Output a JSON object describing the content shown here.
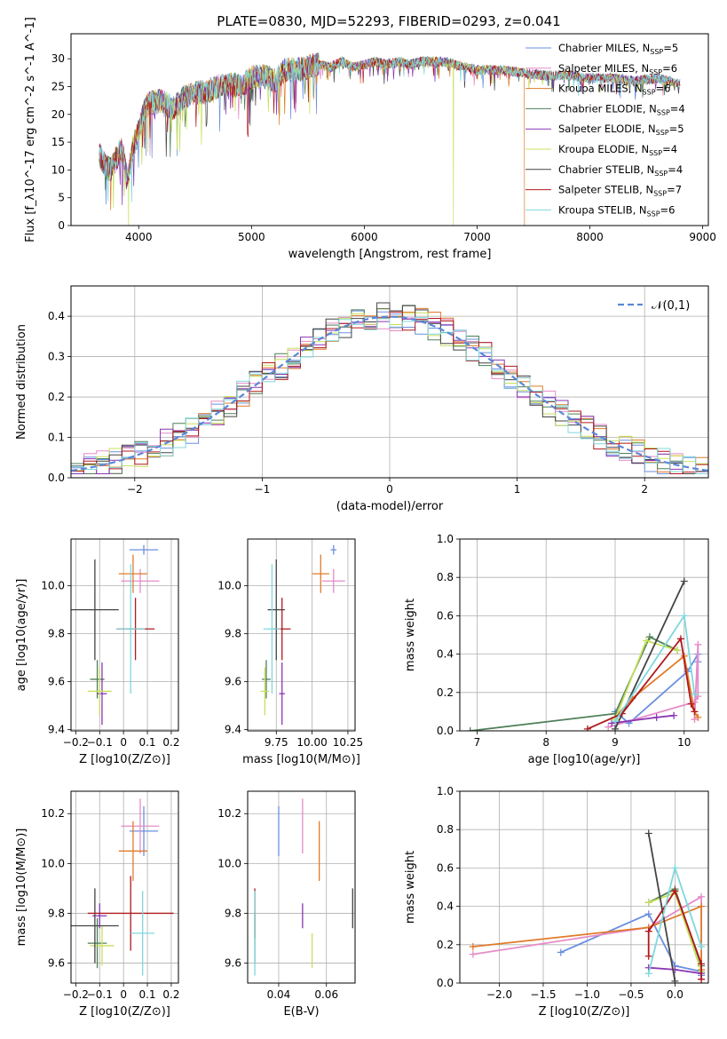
{
  "title": "PLATE=0830, MJD=52293, FIBERID=0293, z=0.041",
  "models": [
    {
      "name": "Chabrier MILES",
      "nssp": "5",
      "color": "#6a8fe0"
    },
    {
      "name": "Salpeter MILES",
      "nssp": "6",
      "color": "#e58bc8"
    },
    {
      "name": "Kroupa MILES",
      "nssp": "6",
      "color": "#e07b2a"
    },
    {
      "name": "Chabrier ELODIE",
      "nssp": "4",
      "color": "#4f7f58"
    },
    {
      "name": "Salpeter ELODIE",
      "nssp": "5",
      "color": "#8a35b5"
    },
    {
      "name": "Kroupa ELODIE",
      "nssp": "4",
      "color": "#c8e05a"
    },
    {
      "name": "Chabrier STELIB",
      "nssp": "4",
      "color": "#444444"
    },
    {
      "name": "Salpeter STELIB",
      "nssp": "7",
      "color": "#b0191c"
    },
    {
      "name": "Kroupa STELIB",
      "nssp": "6",
      "color": "#7fd8dc"
    }
  ],
  "chart_data": [
    {
      "id": "spectrum",
      "type": "line",
      "xlabel": "wavelength [Angstrom, rest frame]",
      "ylabel": "Flux [f_λ10^-17 erg cm^-2 s^-1 A^-1]",
      "xlim": [
        3400,
        9050
      ],
      "ylim": [
        0,
        34.5
      ],
      "xticks": [
        4000,
        5000,
        6000,
        7000,
        8000,
        9000
      ],
      "yticks": [
        0,
        5,
        10,
        15,
        20,
        25,
        30
      ],
      "grid": false,
      "legend": "right",
      "continuum": [
        [
          3650,
          13
        ],
        [
          3700,
          11
        ],
        [
          3750,
          10
        ],
        [
          3800,
          12
        ],
        [
          3850,
          14
        ],
        [
          3900,
          8
        ],
        [
          3950,
          14
        ],
        [
          4000,
          17
        ],
        [
          4050,
          21
        ],
        [
          4100,
          22
        ],
        [
          4200,
          22.5
        ],
        [
          4300,
          21
        ],
        [
          4400,
          23
        ],
        [
          4500,
          24
        ],
        [
          4600,
          24
        ],
        [
          4700,
          25
        ],
        [
          4800,
          25.5
        ],
        [
          4900,
          25
        ],
        [
          5000,
          26.5
        ],
        [
          5100,
          27
        ],
        [
          5200,
          26
        ],
        [
          5300,
          28
        ],
        [
          5400,
          28
        ],
        [
          5500,
          28.5
        ],
        [
          5600,
          29
        ],
        [
          5700,
          28.5
        ],
        [
          5800,
          29.5
        ],
        [
          5900,
          28.5
        ],
        [
          6000,
          29
        ],
        [
          6100,
          29.5
        ],
        [
          6200,
          29
        ],
        [
          6300,
          29.5
        ],
        [
          6400,
          29
        ],
        [
          6500,
          29.5
        ],
        [
          6600,
          29.5
        ],
        [
          6700,
          29.5
        ],
        [
          6800,
          29
        ],
        [
          6900,
          28.5
        ],
        [
          7000,
          28
        ],
        [
          7200,
          28
        ],
        [
          7400,
          27.5
        ],
        [
          7600,
          27
        ],
        [
          7800,
          27
        ],
        [
          8000,
          26.5
        ],
        [
          8200,
          26.5
        ],
        [
          8400,
          26
        ],
        [
          8600,
          26.5
        ],
        [
          8800,
          25.5
        ]
      ],
      "dropouts": [
        {
          "x": 3910,
          "series": 5
        },
        {
          "x": 6790,
          "series": 5
        },
        {
          "x": 7420,
          "series": 2
        }
      ]
    },
    {
      "id": "residuals",
      "type": "histogram",
      "xlabel": "(data-model)/error",
      "ylabel": "Normed distribution",
      "xlim": [
        -2.5,
        2.5
      ],
      "ylim": [
        0,
        0.475
      ],
      "xticks": [
        -2,
        -1,
        0,
        1,
        2
      ],
      "yticks": [
        0,
        0.1,
        0.2,
        0.3,
        0.4
      ],
      "grid": true,
      "legend": "top-right",
      "legend_label": "𝒩(0,1)",
      "bin_edges_start": -2.5,
      "bin_width": 0.1
    },
    {
      "id": "age_vs_Z",
      "type": "errorbar",
      "xlabel": "Z [log10(Z/Z⊙)]",
      "ylabel": "age [log10(age/yr)]",
      "xlim": [
        -0.22,
        0.23
      ],
      "ylim": [
        9.395,
        10.195
      ],
      "xticks": [
        -0.2,
        -0.1,
        0.0,
        0.1,
        0.2
      ],
      "yticks": [
        9.4,
        9.6,
        9.8,
        10.0
      ],
      "grid": true,
      "points": [
        {
          "s": 0,
          "x": 0.085,
          "y": 10.15,
          "xe": 0.06,
          "ye": 0.02
        },
        {
          "s": 1,
          "x": 0.07,
          "y": 10.02,
          "xe": 0.08,
          "ye": 0.05
        },
        {
          "s": 2,
          "x": 0.04,
          "y": 10.05,
          "xe": 0.06,
          "ye": 0.08
        },
        {
          "s": 3,
          "x": -0.11,
          "y": 9.61,
          "xe": 0.03,
          "ye": 0.08
        },
        {
          "s": 4,
          "x": -0.09,
          "y": 9.55,
          "xe": 0.02,
          "ye": 0.13
        },
        {
          "s": 5,
          "x": -0.1,
          "y": 9.56,
          "xe": 0.05,
          "ye": 0.1
        },
        {
          "s": 6,
          "x": -0.12,
          "y": 9.9,
          "xe": 0.1,
          "ye": 0.21
        },
        {
          "s": 7,
          "x": 0.05,
          "y": 9.82,
          "xe": 0.08,
          "ye": 0.13
        },
        {
          "s": 8,
          "x": 0.03,
          "y": 9.82,
          "xe": 0.06,
          "ye": 0.27
        }
      ]
    },
    {
      "id": "age_vs_mass",
      "type": "errorbar",
      "xlabel": "mass [log10(M/M⊙)]",
      "ylabel": "",
      "xlim": [
        9.55,
        10.3
      ],
      "ylim": [
        9.395,
        10.195
      ],
      "xticks": [
        9.75,
        10.0,
        10.25
      ],
      "xticklabels": [
        "9.75",
        "10.00",
        "10.25"
      ],
      "yticks": [
        9.4,
        9.6,
        9.8,
        10.0
      ],
      "grid": true,
      "points": [
        {
          "s": 0,
          "x": 10.15,
          "y": 10.15,
          "xe": 0.02,
          "ye": 0.02
        },
        {
          "s": 1,
          "x": 10.15,
          "y": 10.02,
          "xe": 0.08,
          "ye": 0.05
        },
        {
          "s": 2,
          "x": 10.06,
          "y": 10.05,
          "xe": 0.06,
          "ye": 0.08
        },
        {
          "s": 3,
          "x": 9.68,
          "y": 9.61,
          "xe": 0.03,
          "ye": 0.08
        },
        {
          "s": 4,
          "x": 9.79,
          "y": 9.55,
          "xe": 0.02,
          "ye": 0.13
        },
        {
          "s": 5,
          "x": 9.67,
          "y": 9.56,
          "xe": 0.03,
          "ye": 0.1
        },
        {
          "s": 6,
          "x": 9.75,
          "y": 9.9,
          "xe": 0.06,
          "ye": 0.21
        },
        {
          "s": 7,
          "x": 9.79,
          "y": 9.82,
          "xe": 0.06,
          "ye": 0.13
        },
        {
          "s": 8,
          "x": 9.72,
          "y": 9.82,
          "xe": 0.06,
          "ye": 0.27
        }
      ]
    },
    {
      "id": "weight_vs_age",
      "type": "line",
      "xlabel": "age [log10(age/yr)]",
      "ylabel": "mass weight",
      "xlim": [
        6.75,
        10.35
      ],
      "ylim": [
        0,
        1
      ],
      "xticks": [
        7,
        8,
        9,
        10
      ],
      "yticks": [
        0,
        0.2,
        0.4,
        0.6,
        0.8,
        1.0
      ],
      "grid": true,
      "series": [
        {
          "s": 0,
          "x": [
            9.0,
            9.2,
            10.05,
            10.2,
            10.2
          ],
          "y": [
            0.1,
            0.04,
            0.31,
            0.4,
            0.36
          ]
        },
        {
          "s": 1,
          "x": [
            8.9,
            10.15,
            10.2,
            10.2,
            10.15
          ],
          "y": [
            0.02,
            0.15,
            0.18,
            0.45,
            0.06
          ]
        },
        {
          "s": 2,
          "x": [
            9.0,
            9.25,
            10.0,
            10.15,
            10.2
          ],
          "y": [
            0.07,
            0.17,
            0.39,
            0.1,
            0.07
          ]
        },
        {
          "s": 3,
          "x": [
            6.9,
            9.0,
            9.5,
            9.9
          ],
          "y": [
            0.0,
            0.09,
            0.49,
            0.42
          ]
        },
        {
          "s": 4,
          "x": [
            8.95,
            9.6,
            9.85
          ],
          "y": [
            0.04,
            0.07,
            0.08
          ]
        },
        {
          "s": 5,
          "x": [
            9.0,
            9.45,
            9.9
          ],
          "y": [
            0.06,
            0.47,
            0.42
          ]
        },
        {
          "s": 6,
          "x": [
            9.0,
            10.0
          ],
          "y": [
            0.01,
            0.78
          ]
        },
        {
          "s": 7,
          "x": [
            8.6,
            9.1,
            9.95,
            10.1,
            10.15
          ],
          "y": [
            0.01,
            0.09,
            0.48,
            0.14,
            0.1
          ]
        },
        {
          "s": 8,
          "x": [
            9.0,
            10.0,
            10.15
          ],
          "y": [
            0.05,
            0.6,
            0.19
          ]
        }
      ]
    },
    {
      "id": "mass_vs_Z",
      "type": "errorbar",
      "xlabel": "Z [log10(Z/Z⊙)]",
      "ylabel": "mass [log10(M/M⊙)]",
      "xlim": [
        -0.22,
        0.23
      ],
      "ylim": [
        9.52,
        10.29
      ],
      "xticks": [
        -0.2,
        -0.1,
        0.0,
        0.1,
        0.2
      ],
      "yticks": [
        9.6,
        9.8,
        10.0,
        10.2
      ],
      "grid": true,
      "points": [
        {
          "s": 0,
          "x": 0.085,
          "y": 10.13,
          "xe": 0.06,
          "ye": 0.1
        },
        {
          "s": 1,
          "x": 0.07,
          "y": 10.15,
          "xe": 0.08,
          "ye": 0.11
        },
        {
          "s": 2,
          "x": 0.04,
          "y": 10.05,
          "xe": 0.06,
          "ye": 0.12
        },
        {
          "s": 3,
          "x": -0.11,
          "y": 9.68,
          "xe": 0.04,
          "ye": 0.1
        },
        {
          "s": 4,
          "x": -0.1,
          "y": 9.79,
          "xe": 0.03,
          "ye": 0.05
        },
        {
          "s": 5,
          "x": -0.09,
          "y": 9.67,
          "xe": 0.05,
          "ye": 0.08
        },
        {
          "s": 6,
          "x": -0.12,
          "y": 9.75,
          "xe": 0.1,
          "ye": 0.15
        },
        {
          "s": 7,
          "x": 0.03,
          "y": 9.8,
          "xe": 0.18,
          "ye": 0.15
        },
        {
          "s": 8,
          "x": 0.08,
          "y": 9.72,
          "xe": 0.05,
          "ye": 0.17
        }
      ]
    },
    {
      "id": "mass_vs_EBV",
      "type": "errorbar",
      "xlabel": "E(B-V)",
      "ylabel": "",
      "xlim": [
        0.027,
        0.072
      ],
      "ylim": [
        9.52,
        10.29
      ],
      "xticks": [
        0.04,
        0.06
      ],
      "xticklabels": [
        "0.04",
        "0.06"
      ],
      "yticks": [
        9.6,
        9.8,
        10.0,
        10.2
      ],
      "grid": true,
      "points": [
        {
          "s": 0,
          "x": 0.04,
          "y": 10.13,
          "xe": 0,
          "ye": 0.1
        },
        {
          "s": 1,
          "x": 0.05,
          "y": 10.15,
          "xe": 0,
          "ye": 0.11
        },
        {
          "s": 2,
          "x": 0.057,
          "y": 10.05,
          "xe": 0,
          "ye": 0.12
        },
        {
          "s": 3,
          "x": 0.03,
          "y": 9.7,
          "xe": 0,
          "ye": 0.1
        },
        {
          "s": 4,
          "x": 0.05,
          "y": 9.79,
          "xe": 0,
          "ye": 0.05
        },
        {
          "s": 5,
          "x": 0.054,
          "y": 9.65,
          "xe": 0,
          "ye": 0.07
        },
        {
          "s": 6,
          "x": 0.071,
          "y": 9.82,
          "xe": 0,
          "ye": 0.08
        },
        {
          "s": 7,
          "x": 0.03,
          "y": 9.8,
          "xe": 0,
          "ye": 0.1
        },
        {
          "s": 8,
          "x": 0.03,
          "y": 9.72,
          "xe": 0,
          "ye": 0.17
        }
      ]
    },
    {
      "id": "weight_vs_Z",
      "type": "line",
      "xlabel": "Z [log10(Z/Z⊙)]",
      "ylabel": "mass weight",
      "xlim": [
        -2.45,
        0.38
      ],
      "ylim": [
        0,
        1
      ],
      "xticks": [
        -2.0,
        -1.5,
        -1.0,
        -0.5,
        0.0
      ],
      "xticklabels": [
        "−2.0",
        "−1.5",
        "−1.0",
        "−0.5",
        "0.0"
      ],
      "yticks": [
        0,
        0.2,
        0.4,
        0.6,
        0.8,
        1.0
      ],
      "grid": true,
      "series": [
        {
          "s": 0,
          "x": [
            -1.3,
            -0.3,
            0.0,
            0.3,
            0.3
          ],
          "y": [
            0.16,
            0.36,
            0.09,
            0.06,
            0.04
          ]
        },
        {
          "s": 1,
          "x": [
            -2.3,
            -0.3,
            0.3,
            0.3
          ],
          "y": [
            0.15,
            0.29,
            0.45,
            0.02
          ]
        },
        {
          "s": 2,
          "x": [
            -2.3,
            -0.3,
            0.3,
            0.3
          ],
          "y": [
            0.19,
            0.29,
            0.4,
            0.07
          ]
        },
        {
          "s": 3,
          "x": [
            -0.3,
            0.0,
            0.3
          ],
          "y": [
            0.42,
            0.49,
            0.09
          ]
        },
        {
          "s": 4,
          "x": [
            -0.3,
            0.0,
            0.3
          ],
          "y": [
            0.08,
            0.07,
            0.05
          ]
        },
        {
          "s": 5,
          "x": [
            -0.3,
            0.0,
            0.3
          ],
          "y": [
            0.42,
            0.47,
            0.06
          ]
        },
        {
          "s": 6,
          "x": [
            -0.3,
            0.0
          ],
          "y": [
            0.78,
            0.01
          ]
        },
        {
          "s": 7,
          "x": [
            -0.3,
            -0.3,
            0.0,
            0.3,
            0.3
          ],
          "y": [
            0.14,
            0.27,
            0.48,
            0.1,
            0.02
          ]
        },
        {
          "s": 8,
          "x": [
            -0.3,
            0.0,
            0.3
          ],
          "y": [
            0.05,
            0.6,
            0.19
          ]
        }
      ]
    }
  ]
}
